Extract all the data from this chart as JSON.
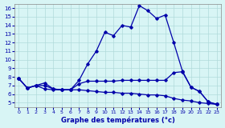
{
  "xlabel": "Graphe des températures (°c)",
  "xlim": [
    -0.5,
    23.5
  ],
  "ylim": [
    4.5,
    16.5
  ],
  "yticks": [
    5,
    6,
    7,
    8,
    9,
    10,
    11,
    12,
    13,
    14,
    15,
    16
  ],
  "xticks": [
    0,
    1,
    2,
    3,
    4,
    5,
    6,
    7,
    8,
    9,
    10,
    11,
    12,
    13,
    14,
    15,
    16,
    17,
    18,
    19,
    20,
    21,
    22,
    23
  ],
  "background_color": "#d8f5f5",
  "grid_color": "#b0dada",
  "line_color": "#0000aa",
  "series_main": {
    "x": [
      0,
      1,
      2,
      3,
      4,
      5,
      6,
      7,
      8,
      9,
      10,
      11,
      12,
      13,
      14,
      15,
      16,
      17,
      18,
      19,
      20,
      21,
      22,
      23
    ],
    "y": [
      7.8,
      6.7,
      7.0,
      7.3,
      6.6,
      6.5,
      6.5,
      7.6,
      9.5,
      11.0,
      13.2,
      12.8,
      14.0,
      13.8,
      16.3,
      15.7,
      14.8,
      15.2,
      12.0,
      8.7,
      6.8,
      6.3,
      5.1,
      4.8
    ]
  },
  "series_mid": {
    "x": [
      0,
      1,
      2,
      3,
      4,
      5,
      6,
      7,
      8,
      9,
      10,
      11,
      12,
      13,
      14,
      15,
      16,
      17,
      18,
      19,
      20,
      21,
      22,
      23
    ],
    "y": [
      7.8,
      6.7,
      7.0,
      7.0,
      6.6,
      6.5,
      6.5,
      7.2,
      7.5,
      7.5,
      7.5,
      7.5,
      7.6,
      7.6,
      7.6,
      7.6,
      7.6,
      7.6,
      8.5,
      8.6,
      6.8,
      6.3,
      5.1,
      4.8
    ]
  },
  "series_low": {
    "x": [
      0,
      1,
      2,
      3,
      4,
      5,
      6,
      7,
      8,
      9,
      10,
      11,
      12,
      13,
      14,
      15,
      16,
      17,
      18,
      19,
      20,
      21,
      22,
      23
    ],
    "y": [
      7.8,
      6.7,
      7.0,
      6.6,
      6.5,
      6.5,
      6.5,
      6.5,
      6.4,
      6.3,
      6.2,
      6.2,
      6.1,
      6.1,
      6.0,
      5.9,
      5.9,
      5.8,
      5.5,
      5.3,
      5.2,
      5.0,
      4.9,
      4.8
    ]
  }
}
